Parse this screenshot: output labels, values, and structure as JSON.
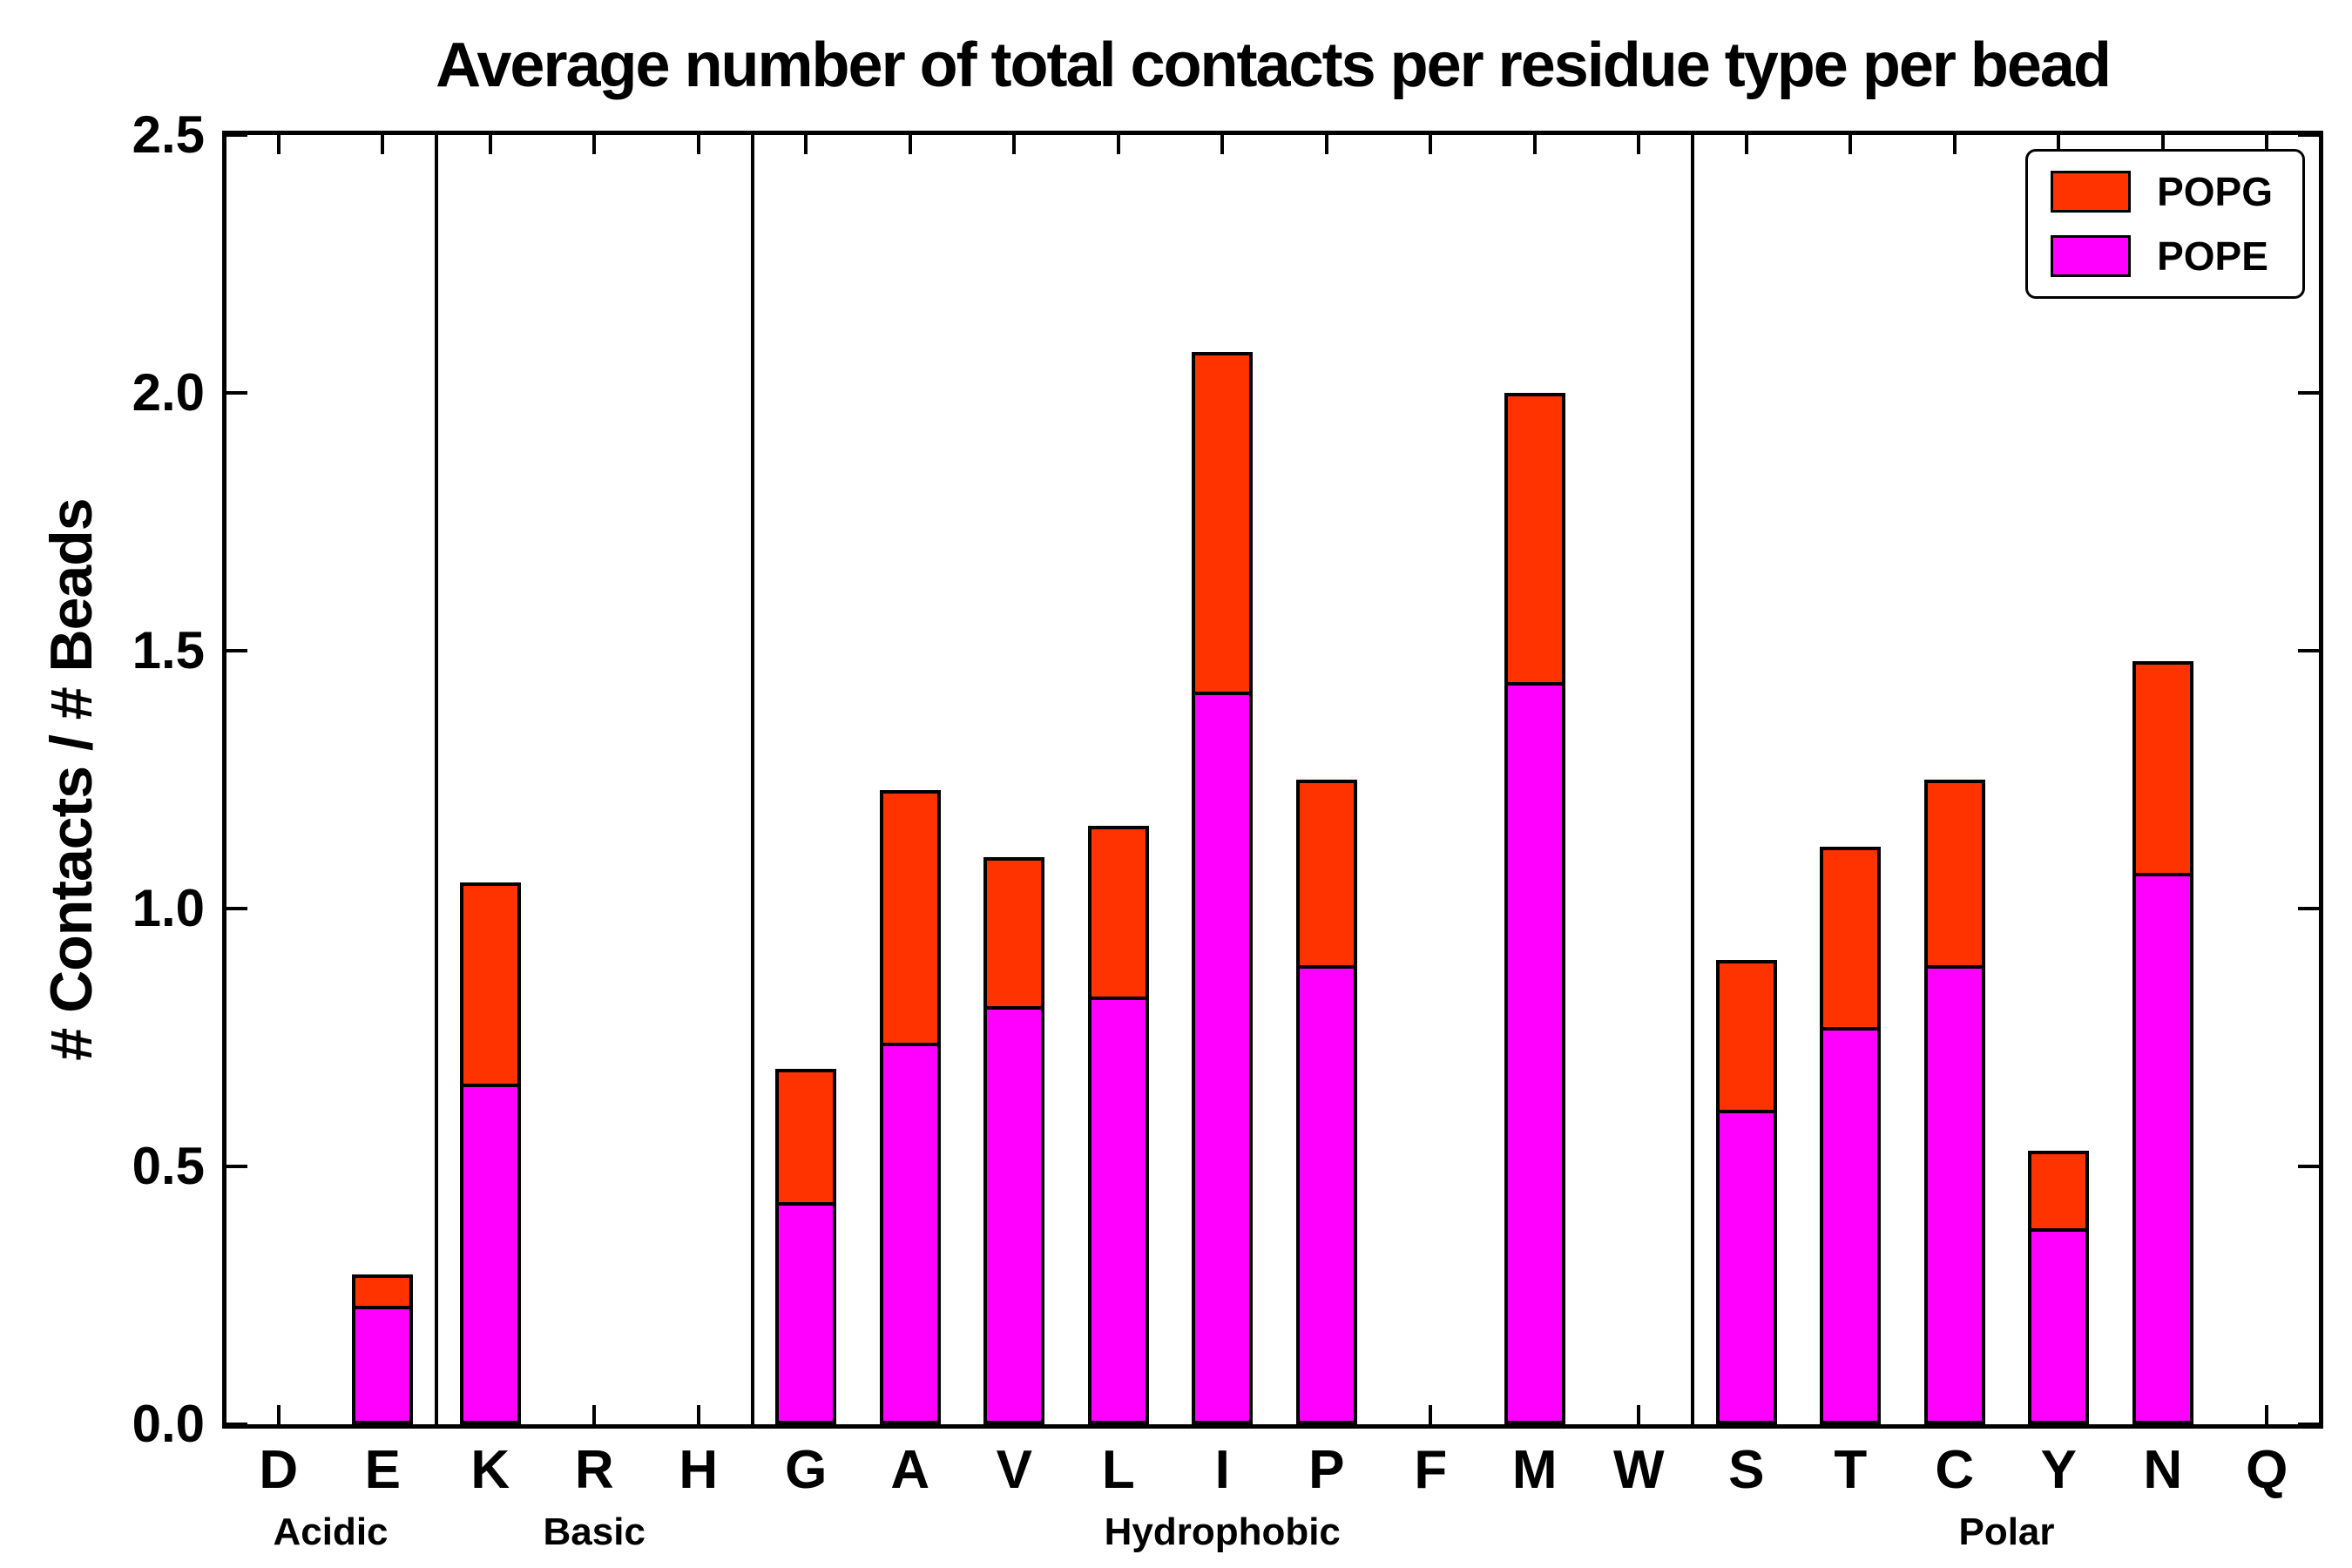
{
  "chart_data": {
    "type": "bar",
    "stacked": true,
    "title": "Average number of total contacts per residue type per bead",
    "ylabel": "# Contacts / # Beads",
    "ylim": [
      0,
      2.5
    ],
    "ytick_labels": [
      "0.0",
      "0.5",
      "1.0",
      "1.5",
      "2.0",
      "2.5"
    ],
    "categories": [
      "D",
      "E",
      "K",
      "R",
      "H",
      "G",
      "A",
      "V",
      "L",
      "I",
      "P",
      "F",
      "M",
      "W",
      "S",
      "T",
      "C",
      "Y",
      "N",
      "Q"
    ],
    "groups": [
      {
        "label": "Acidic",
        "count": 2
      },
      {
        "label": "Basic",
        "count": 3
      },
      {
        "label": "Hydrophobic",
        "count": 9
      },
      {
        "label": "Polar",
        "count": 6
      }
    ],
    "series": [
      {
        "name": "POPE",
        "color": "#FF00FF",
        "values": [
          0,
          0.23,
          0.66,
          0,
          0,
          0.43,
          0.74,
          0.81,
          0.83,
          1.42,
          0.89,
          0,
          1.44,
          0,
          0.61,
          0.77,
          0.89,
          0.38,
          1.07,
          0
        ]
      },
      {
        "name": "POPG",
        "color": "#FF3300",
        "values": [
          0,
          0.06,
          0.39,
          0,
          0,
          0.26,
          0.49,
          0.29,
          0.33,
          0.66,
          0.36,
          0,
          0.56,
          0,
          0.29,
          0.35,
          0.36,
          0.15,
          0.41,
          0
        ]
      }
    ],
    "totals": [
      0,
      0.29,
      1.05,
      0,
      0,
      0.69,
      1.23,
      1.1,
      1.16,
      2.08,
      1.25,
      0,
      2.0,
      0,
      0.9,
      1.12,
      1.25,
      0.53,
      1.48,
      0
    ],
    "legend": {
      "position": "upper right",
      "entries": [
        "POPG",
        "POPE"
      ]
    },
    "grid": false
  }
}
